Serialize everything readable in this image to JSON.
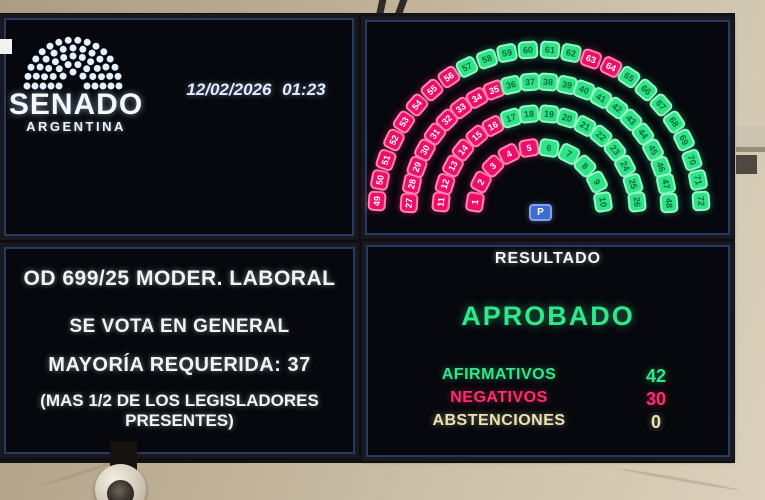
{
  "header": {
    "logo_title": "SENADO",
    "logo_subtitle": "ARGENTINA",
    "datetime": "12/02/2026 01:23"
  },
  "motion": {
    "line1": "OD 699/25 MODER. LABORAL",
    "line2": "SE VOTA EN GENERAL",
    "line3": "MAYORÍA REQUERIDA: 37",
    "line4": "(MAS 1/2 DE LOS LEGISLADORES PRESENTES)"
  },
  "result": {
    "title": "RESULTADO",
    "status": "APROBADO",
    "rows": [
      {
        "label": "AFIRMATIVOS",
        "value": "42",
        "color": "#30e78c"
      },
      {
        "label": "NEGATIVOS",
        "value": "30",
        "color": "#ff2d6e"
      },
      {
        "label": "ABSTENCIONES",
        "value": "0",
        "color": "#ece4b4"
      }
    ]
  },
  "chart_data": {
    "type": "seat-map",
    "title": "Tablero de votación del Senado (hemiciclo)",
    "totals": {
      "afirmativos": 42,
      "negativos": 30,
      "abstenciones": 0
    },
    "legend": {
      "afirmativo": "#2ee487",
      "negativo": "#ee0e67",
      "presidencia": "#3f6bce"
    },
    "president_label": "P",
    "rows": [
      {
        "radius": 65,
        "seats": [
          {
            "num": 1,
            "vote": "negativo"
          },
          {
            "num": 2,
            "vote": "negativo"
          },
          {
            "num": 3,
            "vote": "negativo"
          },
          {
            "num": 4,
            "vote": "negativo"
          },
          {
            "num": 5,
            "vote": "negativo"
          },
          {
            "num": 6,
            "vote": "afirmativo"
          },
          {
            "num": 7,
            "vote": "afirmativo"
          },
          {
            "num": 8,
            "vote": "afirmativo"
          },
          {
            "num": 9,
            "vote": "afirmativo"
          },
          {
            "num": 10,
            "vote": "afirmativo"
          }
        ]
      },
      {
        "radius": 98,
        "seats": [
          {
            "num": 11,
            "vote": "negativo"
          },
          {
            "num": 12,
            "vote": "negativo"
          },
          {
            "num": 13,
            "vote": "negativo"
          },
          {
            "num": 14,
            "vote": "negativo"
          },
          {
            "num": 15,
            "vote": "negativo"
          },
          {
            "num": 16,
            "vote": "negativo"
          },
          {
            "num": 17,
            "vote": "afirmativo"
          },
          {
            "num": 18,
            "vote": "afirmativo"
          },
          {
            "num": 19,
            "vote": "afirmativo"
          },
          {
            "num": 20,
            "vote": "afirmativo"
          },
          {
            "num": 21,
            "vote": "afirmativo"
          },
          {
            "num": 22,
            "vote": "afirmativo"
          },
          {
            "num": 23,
            "vote": "afirmativo"
          },
          {
            "num": 24,
            "vote": "afirmativo"
          },
          {
            "num": 25,
            "vote": "afirmativo"
          },
          {
            "num": 26,
            "vote": "afirmativo"
          }
        ]
      },
      {
        "radius": 130,
        "seats": [
          {
            "num": 27,
            "vote": "negativo"
          },
          {
            "num": 28,
            "vote": "negativo"
          },
          {
            "num": 29,
            "vote": "negativo"
          },
          {
            "num": 30,
            "vote": "negativo"
          },
          {
            "num": 31,
            "vote": "negativo"
          },
          {
            "num": 32,
            "vote": "negativo"
          },
          {
            "num": 33,
            "vote": "negativo"
          },
          {
            "num": 34,
            "vote": "negativo"
          },
          {
            "num": 35,
            "vote": "negativo"
          },
          {
            "num": 36,
            "vote": "afirmativo"
          },
          {
            "num": 37,
            "vote": "afirmativo"
          },
          {
            "num": 38,
            "vote": "afirmativo"
          },
          {
            "num": 39,
            "vote": "afirmativo"
          },
          {
            "num": 40,
            "vote": "afirmativo"
          },
          {
            "num": 41,
            "vote": "afirmativo"
          },
          {
            "num": 42,
            "vote": "afirmativo"
          },
          {
            "num": 43,
            "vote": "afirmativo"
          },
          {
            "num": 44,
            "vote": "afirmativo"
          },
          {
            "num": 45,
            "vote": "afirmativo"
          },
          {
            "num": 46,
            "vote": "afirmativo"
          },
          {
            "num": 47,
            "vote": "afirmativo"
          },
          {
            "num": 48,
            "vote": "afirmativo"
          }
        ]
      },
      {
        "radius": 162,
        "seats": [
          {
            "num": 49,
            "vote": "negativo"
          },
          {
            "num": 50,
            "vote": "negativo"
          },
          {
            "num": 51,
            "vote": "negativo"
          },
          {
            "num": 52,
            "vote": "negativo"
          },
          {
            "num": 53,
            "vote": "negativo"
          },
          {
            "num": 54,
            "vote": "negativo"
          },
          {
            "num": 55,
            "vote": "negativo"
          },
          {
            "num": 56,
            "vote": "negativo"
          },
          {
            "num": 57,
            "vote": "afirmativo"
          },
          {
            "num": 58,
            "vote": "afirmativo"
          },
          {
            "num": 59,
            "vote": "afirmativo"
          },
          {
            "num": 60,
            "vote": "afirmativo"
          },
          {
            "num": 61,
            "vote": "afirmativo"
          },
          {
            "num": 62,
            "vote": "afirmativo"
          },
          {
            "num": 63,
            "vote": "negativo"
          },
          {
            "num": 64,
            "vote": "negativo"
          },
          {
            "num": 65,
            "vote": "afirmativo"
          },
          {
            "num": 66,
            "vote": "afirmativo"
          },
          {
            "num": 67,
            "vote": "afirmativo"
          },
          {
            "num": 68,
            "vote": "afirmativo"
          },
          {
            "num": 69,
            "vote": "afirmativo"
          },
          {
            "num": 70,
            "vote": "afirmativo"
          },
          {
            "num": 71,
            "vote": "afirmativo"
          },
          {
            "num": 72,
            "vote": "afirmativo"
          }
        ]
      }
    ]
  }
}
